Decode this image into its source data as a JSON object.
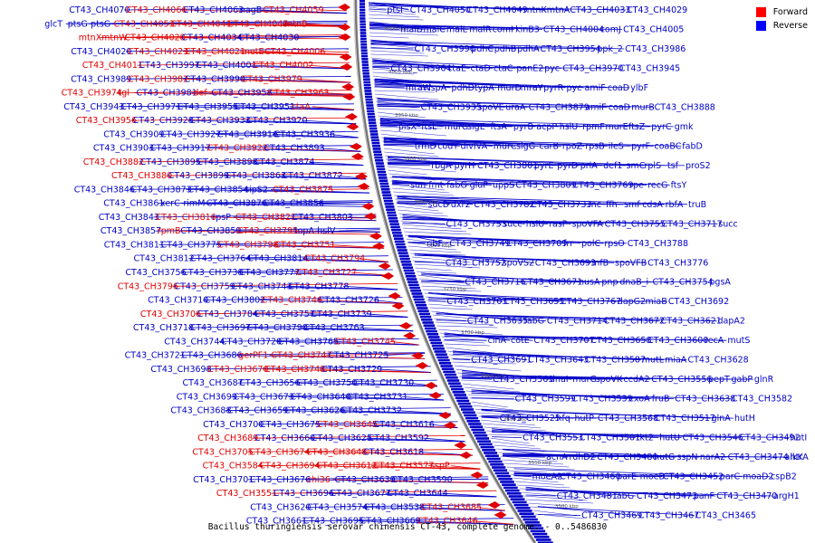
{
  "caption": "Bacillus thuringiensis serovar chinensis CT-43, complete genome. - 0..5486830",
  "legend": [
    {
      "label": "Forward",
      "color": "#ff0000"
    },
    {
      "label": "Reverse",
      "color": "#0000ff"
    }
  ],
  "colors": {
    "forward": "#e00000",
    "reverse": "#0000c8",
    "axis": "#888888"
  },
  "ticks": [
    "4050 kbp",
    "4000 kbp",
    "3950 kbp",
    "3900 kbp",
    "3850 kbp",
    "3800 kbp",
    "3750 kbp",
    "3700 kbp",
    "3650 kbp",
    "3600 kbp",
    "3550 kbp",
    "3500 kbp"
  ],
  "left_labels": [
    {
      "text": "CT43_CH4070",
      "s": "r"
    },
    {
      "text": "CT43_CH4066",
      "s": "f"
    },
    {
      "text": "CT43_CH4063",
      "s": "r"
    },
    {
      "text": "nagB",
      "s": "r"
    },
    {
      "text": "CT43_CH4059",
      "s": "f"
    },
    {
      "text": "glcT",
      "s": "r"
    },
    {
      "text": "ptsG",
      "s": "r"
    },
    {
      "text": "ptsG",
      "s": "r"
    },
    {
      "text": "CT43_CH4053",
      "s": "f"
    },
    {
      "text": "CT43_CH4041",
      "s": "f"
    },
    {
      "text": "CT43_CH4045",
      "s": "f"
    },
    {
      "text": "mtnB",
      "s": "f"
    },
    {
      "text": "mtnX",
      "s": "f"
    },
    {
      "text": "mtnW",
      "s": "f"
    },
    {
      "text": "CT43_CH4028",
      "s": "f"
    },
    {
      "text": "CT43_CH4034",
      "s": "r"
    },
    {
      "text": "CT43_CH4030",
      "s": "r"
    },
    {
      "text": "CT43_CH4020",
      "s": "r"
    },
    {
      "text": "CT43_CH4023",
      "s": "f"
    },
    {
      "text": "CT43_CH4021",
      "s": "f"
    },
    {
      "text": "metE",
      "s": "f"
    },
    {
      "text": "CT43_CH4006",
      "s": "f"
    },
    {
      "text": "CT43_CH4011",
      "s": "f"
    },
    {
      "text": "CT43_CH3997",
      "s": "r"
    },
    {
      "text": "CT43_CH4001",
      "s": "r"
    },
    {
      "text": "CT43_CH4002",
      "s": "f"
    },
    {
      "text": "CT43_CH3989",
      "s": "r"
    },
    {
      "text": "CT43_CH3982",
      "s": "f"
    },
    {
      "text": "CT43_CH3990",
      "s": "r"
    },
    {
      "text": "CT43_CH3979",
      "s": "f"
    },
    {
      "text": "CT43_CH3974",
      "s": "f"
    },
    {
      "text": "tgl",
      "s": "f"
    },
    {
      "text": "CT43_CH3981",
      "s": "r"
    },
    {
      "text": "def",
      "s": "f"
    },
    {
      "text": "CT43_CH3958",
      "s": "r"
    },
    {
      "text": "CT43_CH3963",
      "s": "f"
    },
    {
      "text": "CT43_CH3943",
      "s": "r"
    },
    {
      "text": "CT43_CH3971",
      "s": "r"
    },
    {
      "text": "CT43_CH3955",
      "s": "r"
    },
    {
      "text": "CT43_CH3951",
      "s": "r"
    },
    {
      "text": "ctaA",
      "s": "f"
    },
    {
      "text": "CT43_CH3956",
      "s": "f"
    },
    {
      "text": "CT43_CH3928",
      "s": "r"
    },
    {
      "text": "CT43_CH3933",
      "s": "r"
    },
    {
      "text": "CT43_CH3920",
      "s": "r"
    },
    {
      "text": "CT43_CH3909",
      "s": "r"
    },
    {
      "text": "CT43_CH3927",
      "s": "r"
    },
    {
      "text": "CT43_CH3916",
      "s": "r"
    },
    {
      "text": "CT43_CH3936",
      "s": "r"
    },
    {
      "text": "CT43_CH3903",
      "s": "r"
    },
    {
      "text": "CT43_CH3917",
      "s": "r"
    },
    {
      "text": "CT43_CH3922",
      "s": "f"
    },
    {
      "text": "CT43_CH3893",
      "s": "r"
    },
    {
      "text": "CT43_CH3882",
      "s": "f"
    },
    {
      "text": "CT43_CH3895",
      "s": "r"
    },
    {
      "text": "CT43_CH3898",
      "s": "r"
    },
    {
      "text": "CT43_CH3874",
      "s": "r"
    },
    {
      "text": "CT43_CH3880",
      "s": "f"
    },
    {
      "text": "CT43_CH3899",
      "s": "r"
    },
    {
      "text": "CT43_CH3863",
      "s": "r"
    },
    {
      "text": "CT43_CH3872",
      "s": "r"
    },
    {
      "text": "CT43_CH3846",
      "s": "r"
    },
    {
      "text": "CT43_CH3873",
      "s": "r"
    },
    {
      "text": "CT43_CH3854",
      "s": "r"
    },
    {
      "text": "sipS2",
      "s": "r"
    },
    {
      "text": "CT43_CH3875",
      "s": "f"
    },
    {
      "text": "CT43_CH3861",
      "s": "r"
    },
    {
      "text": "xerC",
      "s": "r"
    },
    {
      "text": "rimM",
      "s": "r"
    },
    {
      "text": "CT43_CH3876",
      "s": "r"
    },
    {
      "text": "CT43_CH3856",
      "s": "r"
    },
    {
      "text": "CT43_CH3843",
      "s": "r"
    },
    {
      "text": "CT43_CH3816",
      "s": "f"
    },
    {
      "text": "rpsP",
      "s": "r"
    },
    {
      "text": "CT43_CH3821",
      "s": "f"
    },
    {
      "text": "CT43_CH3803",
      "s": "r"
    },
    {
      "text": "CT43_CH3857",
      "s": "r"
    },
    {
      "text": "rpmB",
      "s": "f"
    },
    {
      "text": "CT43_CH3859",
      "s": "r"
    },
    {
      "text": "CT43_CH3795",
      "s": "f"
    },
    {
      "text": "topA",
      "s": "r"
    },
    {
      "text": "hslV",
      "s": "r"
    },
    {
      "text": "CT43_CH3811",
      "s": "r"
    },
    {
      "text": "CT43_CH3775",
      "s": "r"
    },
    {
      "text": "CT43_CH3798",
      "s": "f"
    },
    {
      "text": "CT43_CH3751",
      "s": "f"
    },
    {
      "text": "CT43_CH3812",
      "s": "r"
    },
    {
      "text": "CT43_CH3764",
      "s": "r"
    },
    {
      "text": "CT43_CH3814",
      "s": "r"
    },
    {
      "text": "CT43_CH3794",
      "s": "f"
    },
    {
      "text": "CT43_CH3756",
      "s": "r"
    },
    {
      "text": "CT43_CH3738",
      "s": "r"
    },
    {
      "text": "CT43_CH3777",
      "s": "r"
    },
    {
      "text": "CT43_CH3727",
      "s": "f"
    },
    {
      "text": "CT43_CH3796",
      "s": "f"
    },
    {
      "text": "CT43_CH3759",
      "s": "r"
    },
    {
      "text": "CT43_CH3743",
      "s": "r"
    },
    {
      "text": "CT43_CH3778",
      "s": "r"
    },
    {
      "text": "CT43_CH3710",
      "s": "r"
    },
    {
      "text": "CT43_CH3802",
      "s": "r"
    },
    {
      "text": "CT43_CH3746",
      "s": "f"
    },
    {
      "text": "CT43_CH3726",
      "s": "r"
    },
    {
      "text": "CT43_CH3706",
      "s": "f"
    },
    {
      "text": "CT43_CH3784",
      "s": "r"
    },
    {
      "text": "CT43_CH3757",
      "s": "r"
    },
    {
      "text": "CT43_CH3739",
      "s": "r"
    },
    {
      "text": "CT43_CH3718",
      "s": "r"
    },
    {
      "text": "CT43_CH3697",
      "s": "r"
    },
    {
      "text": "CT43_CH3790",
      "s": "r"
    },
    {
      "text": "CT43_CH3763",
      "s": "r"
    },
    {
      "text": "CT43_CH3744",
      "s": "r"
    },
    {
      "text": "CT43_CH3720",
      "s": "r"
    },
    {
      "text": "CT43_CH3765",
      "s": "r"
    },
    {
      "text": "CT43_CH3745",
      "s": "f"
    },
    {
      "text": "CT43_CH3721",
      "s": "r"
    },
    {
      "text": "CT43_CH3686",
      "s": "r"
    },
    {
      "text": "gerPF1",
      "s": "f"
    },
    {
      "text": "CT43_CH3747",
      "s": "f"
    },
    {
      "text": "CT43_CH3725",
      "s": "r"
    },
    {
      "text": "CT43_CH3698",
      "s": "r"
    },
    {
      "text": "CT43_CH3670",
      "s": "f"
    },
    {
      "text": "CT43_CH3748",
      "s": "f"
    },
    {
      "text": "CT43_CH3729",
      "s": "r"
    },
    {
      "text": "CT43_CH3687",
      "s": "r"
    },
    {
      "text": "CT43_CH3656",
      "s": "r"
    },
    {
      "text": "CT43_CH3750",
      "s": "r"
    },
    {
      "text": "CT43_CH3730",
      "s": "r"
    },
    {
      "text": "CT43_CH3699",
      "s": "r"
    },
    {
      "text": "CT43_CH3673",
      "s": "r"
    },
    {
      "text": "CT43_CH3640",
      "s": "r"
    },
    {
      "text": "CT43_CH3731",
      "s": "r"
    },
    {
      "text": "CT43_CH3688",
      "s": "r"
    },
    {
      "text": "CT43_CH3659",
      "s": "r"
    },
    {
      "text": "CT43_CH3626",
      "s": "r"
    },
    {
      "text": "CT43_CH3732",
      "s": "r"
    },
    {
      "text": "CT43_CH3700",
      "s": "r"
    },
    {
      "text": "CT43_CH3675",
      "s": "r"
    },
    {
      "text": "CT43_CH3645",
      "s": "f"
    },
    {
      "text": "CT43_CH3616",
      "s": "r"
    },
    {
      "text": "CT43_CH3689",
      "s": "f"
    },
    {
      "text": "CT43_CH3660",
      "s": "r"
    },
    {
      "text": "CT43_CH3625",
      "s": "r"
    },
    {
      "text": "CT43_CH3592",
      "s": "r"
    },
    {
      "text": "CT43_CH3705",
      "s": "f"
    },
    {
      "text": "CT43_CH3674",
      "s": "f"
    },
    {
      "text": "CT43_CH3648",
      "s": "f"
    },
    {
      "text": "CT43_CH3618",
      "s": "r"
    },
    {
      "text": "CT43_CH3584",
      "s": "f"
    },
    {
      "text": "CT43_CH3694",
      "s": "f"
    },
    {
      "text": "CT43_CH3612",
      "s": "f"
    },
    {
      "text": "CT43_CH3577",
      "s": "f"
    },
    {
      "text": "sspP",
      "s": "f"
    },
    {
      "text": "CT43_CH3701",
      "s": "r"
    },
    {
      "text": "CT43_CH3676",
      "s": "r"
    },
    {
      "text": "chi36",
      "s": "f"
    },
    {
      "text": "CT43_CH3639",
      "s": "r"
    },
    {
      "text": "CT43_CH3590",
      "s": "r"
    },
    {
      "text": "CT43_CH3551",
      "s": "f"
    },
    {
      "text": "CT43_CH3696",
      "s": "r"
    },
    {
      "text": "CT43_CH3677",
      "s": "r"
    },
    {
      "text": "CT43_CH3644",
      "s": "r"
    },
    {
      "text": "CT43_CH3620",
      "s": "r"
    },
    {
      "text": "CT43_CH3574",
      "s": "r"
    },
    {
      "text": "CT43_CH3538",
      "s": "r"
    },
    {
      "text": "CT43_CH3685",
      "s": "f"
    },
    {
      "text": "CT43_CH3661",
      "s": "r"
    },
    {
      "text": "CT43_CH3695",
      "s": "r"
    },
    {
      "text": "CT43_CH3669",
      "s": "r"
    },
    {
      "text": "CT43_CH3646",
      "s": "f"
    }
  ],
  "right_labels": [
    {
      "text": "ptsI"
    },
    {
      "text": "CT43_CH4050"
    },
    {
      "text": "CT43_CH4049"
    },
    {
      "text": "mtnK"
    },
    {
      "text": "mtnA"
    },
    {
      "text": "CT43_CH4033"
    },
    {
      "text": "CT43_CH4029"
    },
    {
      "text": "malD"
    },
    {
      "text": "malC"
    },
    {
      "text": "malL"
    },
    {
      "text": "malR"
    },
    {
      "text": "comI"
    },
    {
      "text": "kinB3"
    },
    {
      "text": "CT43_CH4004"
    },
    {
      "text": "comJ"
    },
    {
      "text": "CT43_CH4005"
    },
    {
      "text": "CT43_CH3996"
    },
    {
      "text": "pdhC"
    },
    {
      "text": "pdhB"
    },
    {
      "text": "pdhA"
    },
    {
      "text": "CT43_CH3954"
    },
    {
      "text": "ppk_2"
    },
    {
      "text": "CT43_CH3986"
    },
    {
      "text": "CT43_CH3964"
    },
    {
      "text": "ctaE"
    },
    {
      "text": "ctaD"
    },
    {
      "text": "ctaC"
    },
    {
      "text": "panE2"
    },
    {
      "text": "pyc"
    },
    {
      "text": "CT43_CH3970"
    },
    {
      "text": "CT43_CH3945"
    },
    {
      "text": "mraW"
    },
    {
      "text": "lspA"
    },
    {
      "text": "pdhD"
    },
    {
      "text": "typA"
    },
    {
      "text": "murD"
    },
    {
      "text": "mraY"
    },
    {
      "text": "pyrR"
    },
    {
      "text": "pyc"
    },
    {
      "text": "amiF"
    },
    {
      "text": "coaD"
    },
    {
      "text": "ylbF"
    },
    {
      "text": "CT43_CH3935"
    },
    {
      "text": "spoVE"
    },
    {
      "text": "uraA"
    },
    {
      "text": "CT43_CH3879"
    },
    {
      "text": "amiF"
    },
    {
      "text": "coaD"
    },
    {
      "text": "murB"
    },
    {
      "text": "CT43_CH3888"
    },
    {
      "text": "plsX"
    },
    {
      "text": "ftsL"
    },
    {
      "text": "murG"
    },
    {
      "text": "sigE"
    },
    {
      "text": "ftsA"
    },
    {
      "text": "pyrB"
    },
    {
      "text": "acpP"
    },
    {
      "text": "hslU"
    },
    {
      "text": "rpmF"
    },
    {
      "text": "murE"
    },
    {
      "text": "ftsZ"
    },
    {
      "text": "pyrC"
    },
    {
      "text": "gmk"
    },
    {
      "text": "trmD"
    },
    {
      "text": "codY"
    },
    {
      "text": "divIVA"
    },
    {
      "text": "murC"
    },
    {
      "text": "sigG"
    },
    {
      "text": "carB"
    },
    {
      "text": "rpoZ"
    },
    {
      "text": "rpsB"
    },
    {
      "text": "ileS"
    },
    {
      "text": "pyrF"
    },
    {
      "text": "coaBC"
    },
    {
      "text": "fabD"
    },
    {
      "text": "rbgA"
    },
    {
      "text": "pyrH"
    },
    {
      "text": "CT43_CH3801"
    },
    {
      "text": "pyrE"
    },
    {
      "text": "pyrD"
    },
    {
      "text": "priA"
    },
    {
      "text": "def1"
    },
    {
      "text": "smC"
    },
    {
      "text": "rplS"
    },
    {
      "text": "tsf"
    },
    {
      "text": "proS2"
    },
    {
      "text": "sun"
    },
    {
      "text": "fmt"
    },
    {
      "text": "fabG"
    },
    {
      "text": "gluP"
    },
    {
      "text": "uppS"
    },
    {
      "text": "CT43_CH3809"
    },
    {
      "text": "CT43_CH3769"
    },
    {
      "text": "rpe"
    },
    {
      "text": "recG"
    },
    {
      "text": "ftsY"
    },
    {
      "text": "sucD"
    },
    {
      "text": "dxr2"
    },
    {
      "text": "CT43_CH3782"
    },
    {
      "text": "CT43_CH3733"
    },
    {
      "text": "rnc"
    },
    {
      "text": "ffh"
    },
    {
      "text": "smf"
    },
    {
      "text": "cdsA"
    },
    {
      "text": "rbfA"
    },
    {
      "text": "truB"
    },
    {
      "text": "CT43_CH3753"
    },
    {
      "text": "succ"
    },
    {
      "text": "hslU"
    },
    {
      "text": "rasP"
    },
    {
      "text": "spoVFA"
    },
    {
      "text": "CT43_CH3755"
    },
    {
      "text": "CT43_CH3717"
    },
    {
      "text": "succ"
    },
    {
      "text": "ribF"
    },
    {
      "text": "CT43_CH3749"
    },
    {
      "text": "CT43_CH3709"
    },
    {
      "text": "frr"
    },
    {
      "text": "polC"
    },
    {
      "text": "rpsO"
    },
    {
      "text": "CT43_CH3788"
    },
    {
      "text": "CT43_CH3752"
    },
    {
      "text": "spoVS2"
    },
    {
      "text": "CT43_CH3693"
    },
    {
      "text": "infB"
    },
    {
      "text": "spoVFB"
    },
    {
      "text": "CT43_CH3776"
    },
    {
      "text": "CT43_CH3716"
    },
    {
      "text": "CT43_CH3671"
    },
    {
      "text": "nusA"
    },
    {
      "text": "pnp"
    },
    {
      "text": "dnaB_i"
    },
    {
      "text": "CT43_CH3754"
    },
    {
      "text": "pgsA"
    },
    {
      "text": "CT43_CH3703"
    },
    {
      "text": "CT43_CH3655"
    },
    {
      "text": "CT43_CH3767"
    },
    {
      "text": "dapG2"
    },
    {
      "text": "miaB"
    },
    {
      "text": "CT43_CH3692"
    },
    {
      "text": "CT43_CH3635"
    },
    {
      "text": "fabG"
    },
    {
      "text": "CT43_CH3714"
    },
    {
      "text": "CT43_CH3672"
    },
    {
      "text": "CT43_CH3621"
    },
    {
      "text": "dapA2"
    },
    {
      "text": "cinA"
    },
    {
      "text": "cotE"
    },
    {
      "text": "CT43_CH3707"
    },
    {
      "text": "CT43_CH3658"
    },
    {
      "text": "CT43_CH3600"
    },
    {
      "text": "recA"
    },
    {
      "text": "mutS"
    },
    {
      "text": "CT43_CH3691"
    },
    {
      "text": "CT43_CH3643"
    },
    {
      "text": "CT43_CH3587"
    },
    {
      "text": "mutL"
    },
    {
      "text": "miaA"
    },
    {
      "text": "CT43_CH3628"
    },
    {
      "text": "CT43_CH3569"
    },
    {
      "text": "dnaI"
    },
    {
      "text": "murG"
    },
    {
      "text": "spoVK"
    },
    {
      "text": "ccdA2"
    },
    {
      "text": "CT43_CH3556"
    },
    {
      "text": "pepT"
    },
    {
      "text": "gabP"
    },
    {
      "text": "glnR"
    },
    {
      "text": "CT43_CH3599"
    },
    {
      "text": "CT43_CH3539"
    },
    {
      "text": "exoA"
    },
    {
      "text": "fruB"
    },
    {
      "text": "CT43_CH3638"
    },
    {
      "text": "CT43_CH3582"
    },
    {
      "text": "CT43_CH3525"
    },
    {
      "text": "hfq"
    },
    {
      "text": "hutP"
    },
    {
      "text": "CT43_CH3568"
    },
    {
      "text": "CT43_CH3517"
    },
    {
      "text": "glnA"
    },
    {
      "text": "hutH"
    },
    {
      "text": "CT43_CH3553"
    },
    {
      "text": "CT43_CH3501"
    },
    {
      "text": "tkt2"
    },
    {
      "text": "hutU"
    },
    {
      "text": "CT43_CH3546"
    },
    {
      "text": "CT43_CH3492"
    },
    {
      "text": "hutI"
    },
    {
      "text": "acnA"
    },
    {
      "text": "rdhD2"
    },
    {
      "text": "CT43_CH3480"
    },
    {
      "text": "hutG"
    },
    {
      "text": "sspN"
    },
    {
      "text": "narA2"
    },
    {
      "text": "CT43_CH3474"
    },
    {
      "text": "alkK"
    },
    {
      "text": "htrA"
    },
    {
      "text": "moeA2"
    },
    {
      "text": "CT43_CH3460"
    },
    {
      "text": "parE"
    },
    {
      "text": "moeB"
    },
    {
      "text": "CT43_CH3452"
    },
    {
      "text": "parC"
    },
    {
      "text": "moaD2"
    },
    {
      "text": "cspB2"
    },
    {
      "text": "CT43_CH3481"
    },
    {
      "text": "fabG"
    },
    {
      "text": "CT43_CH3473"
    },
    {
      "text": "panF"
    },
    {
      "text": "CT43_CH3470"
    },
    {
      "text": "argH1"
    },
    {
      "text": "CT43_CH3469"
    },
    {
      "text": "CT43_CH3467"
    },
    {
      "text": "CT43_CH3465"
    }
  ]
}
